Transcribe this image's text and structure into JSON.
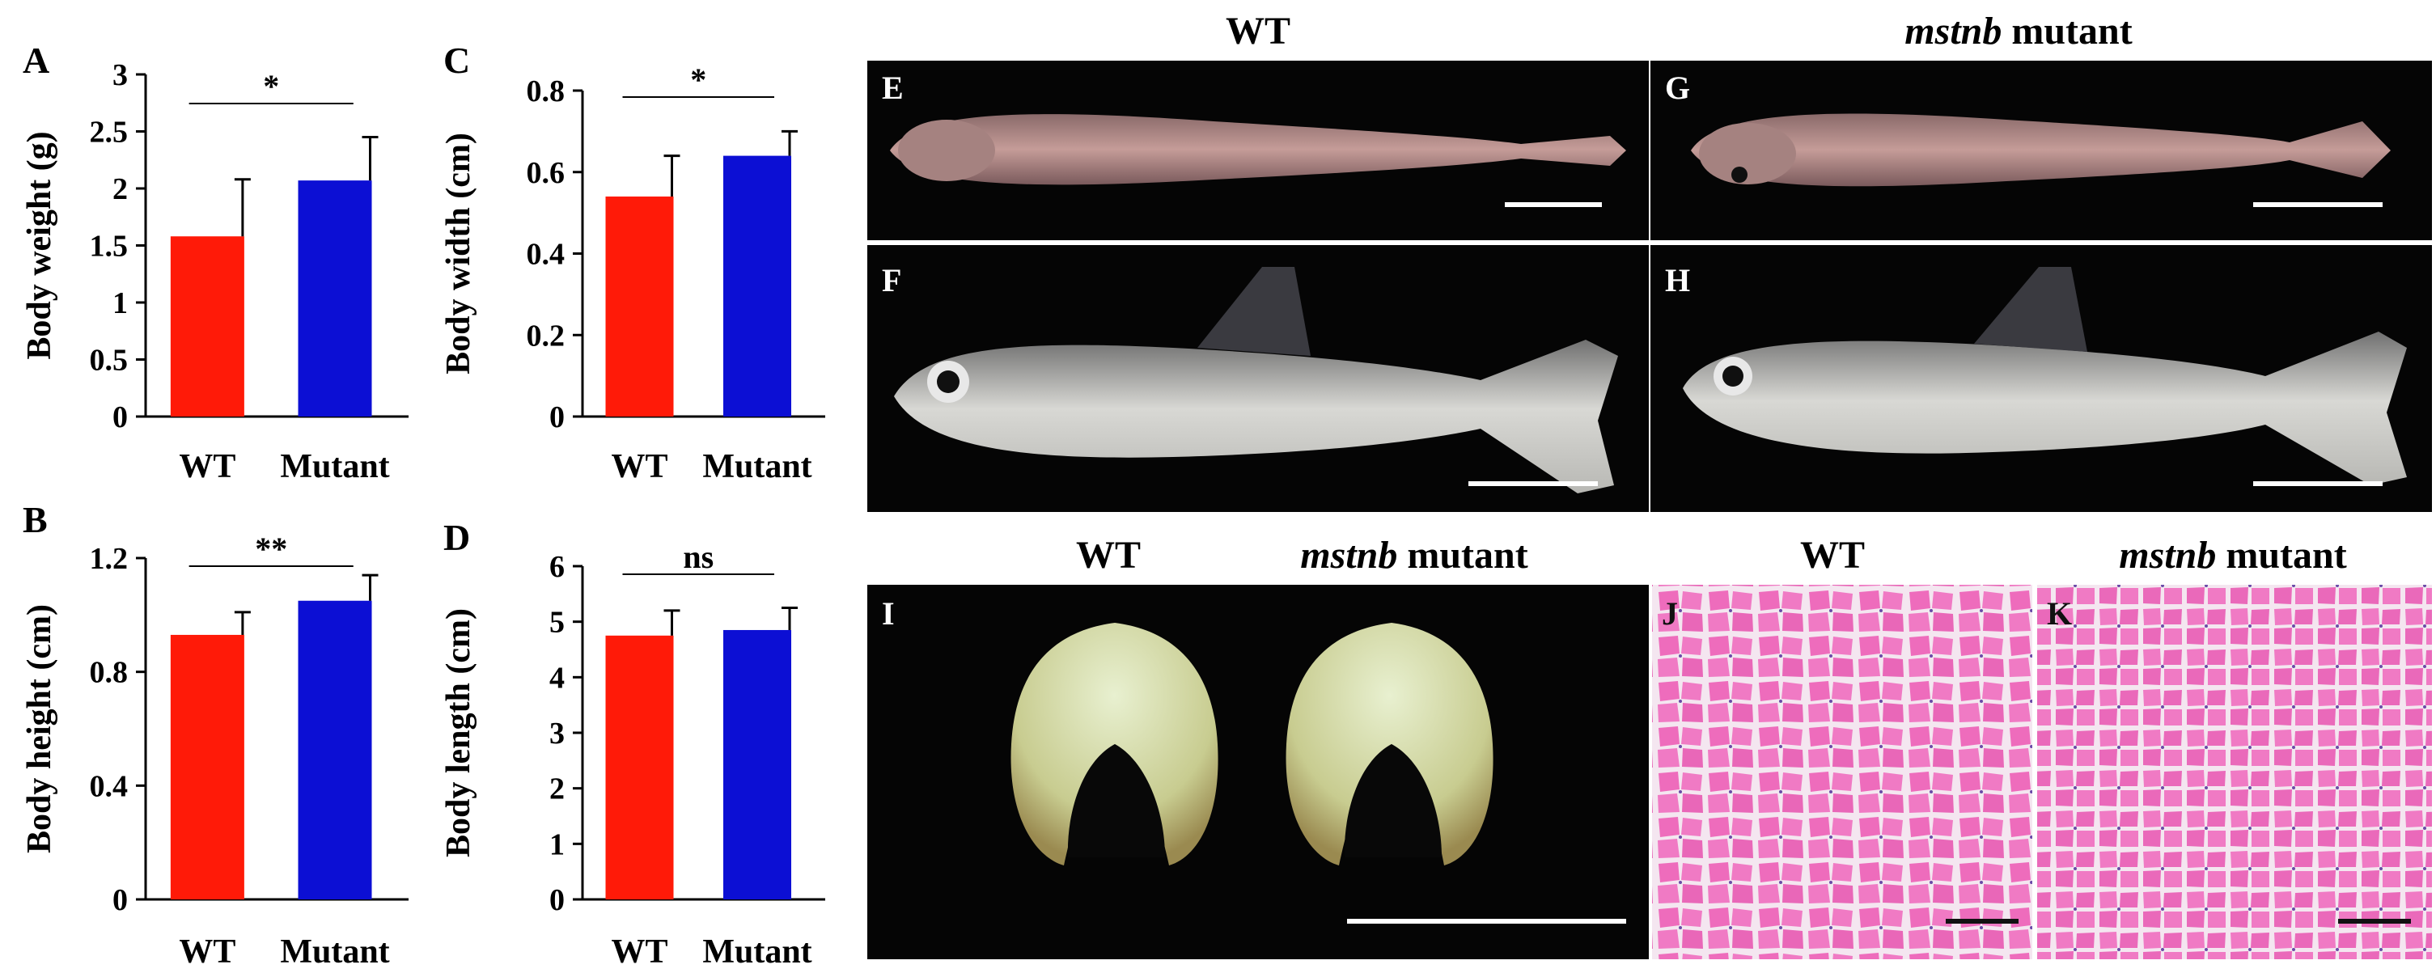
{
  "colors": {
    "wt": "#ff1a08",
    "mutant": "#0c0fd4",
    "photo_bg": "#050505",
    "tissue_pink": "#ef6bbd"
  },
  "panels": {
    "A": {
      "letter": "A",
      "ylabel": "Body weight (g)",
      "ticks": [
        "3",
        "2.5",
        "2",
        "1.5",
        "1",
        "0.5",
        "0"
      ],
      "sig": "*",
      "wt_label": "WT",
      "mutant_label": "Mutant"
    },
    "B": {
      "letter": "B",
      "ylabel": "Body height (cm)",
      "ticks": [
        "1.2",
        "0.8",
        "0.4",
        "0"
      ],
      "sig": "**",
      "wt_label": "WT",
      "mutant_label": "Mutant"
    },
    "C": {
      "letter": "C",
      "ylabel": "Body width (cm)",
      "ticks": [
        "0.8",
        "0.6",
        "0.4",
        "0.2",
        "0"
      ],
      "sig": "*",
      "wt_label": "WT",
      "mutant_label": "Mutant"
    },
    "D": {
      "letter": "D",
      "ylabel": "Body length (cm)",
      "ticks": [
        "6",
        "5",
        "4",
        "3",
        "2",
        "1",
        "0"
      ],
      "sig": "ns",
      "wt_label": "WT",
      "mutant_label": "Mutant"
    },
    "E": {
      "letter": "E"
    },
    "F": {
      "letter": "F"
    },
    "G": {
      "letter": "G"
    },
    "H": {
      "letter": "H"
    },
    "I": {
      "letter": "I"
    },
    "J": {
      "letter": "J"
    },
    "K": {
      "letter": "K"
    }
  },
  "headers": {
    "wt": "WT",
    "mutant_gene": "mstnb",
    "mutant_word": " mutant"
  },
  "chart_data": [
    {
      "panel": "A",
      "type": "bar",
      "categories": [
        "WT",
        "Mutant"
      ],
      "values": [
        1.58,
        2.07
      ],
      "errors": [
        0.5,
        0.38
      ],
      "ylabel": "Body weight (g)",
      "ylim": [
        0,
        3
      ]
    },
    {
      "panel": "B",
      "type": "bar",
      "categories": [
        "WT",
        "Mutant"
      ],
      "values": [
        0.93,
        1.05
      ],
      "errors": [
        0.08,
        0.09
      ],
      "ylabel": "Body height (cm)",
      "ylim": [
        0,
        1.2
      ]
    },
    {
      "panel": "C",
      "type": "bar",
      "categories": [
        "WT",
        "Mutant"
      ],
      "values": [
        0.54,
        0.64
      ],
      "errors": [
        0.1,
        0.06
      ],
      "ylabel": "Body width (cm)",
      "ylim": [
        0,
        0.8
      ]
    },
    {
      "panel": "D",
      "type": "bar",
      "categories": [
        "WT",
        "Mutant"
      ],
      "values": [
        4.75,
        4.85
      ],
      "errors": [
        0.45,
        0.4
      ],
      "ylabel": "Body length (cm)",
      "ylim": [
        0,
        6
      ]
    }
  ]
}
